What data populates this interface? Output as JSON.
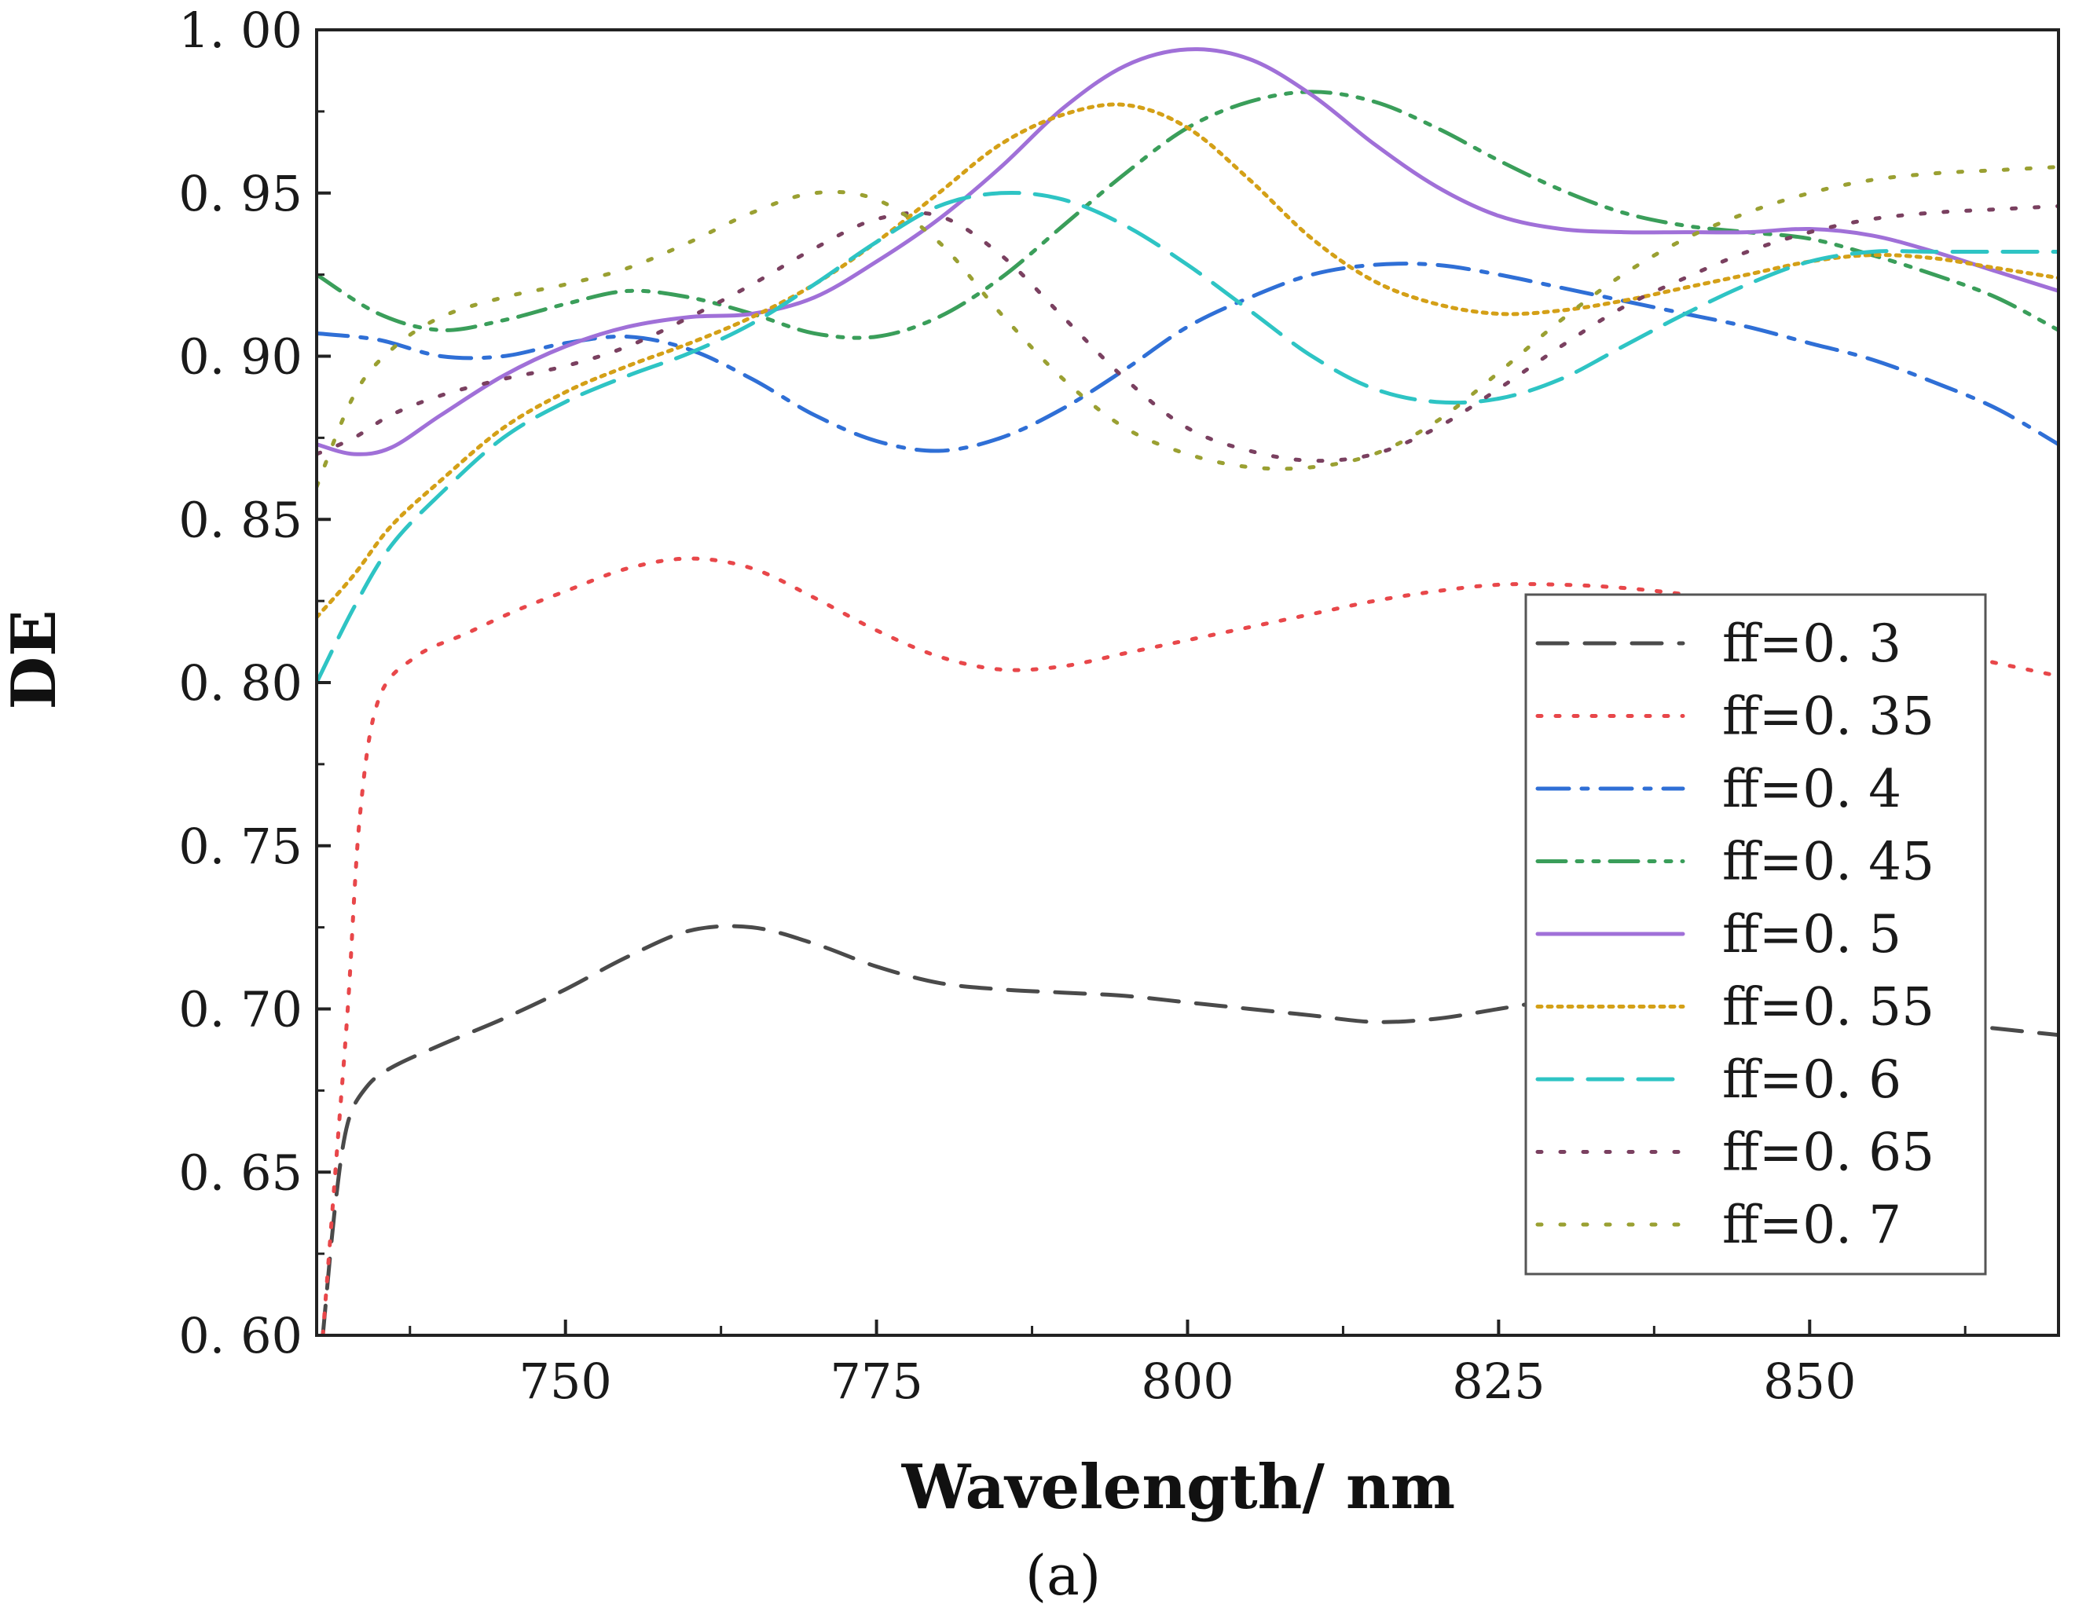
{
  "chart_data": {
    "type": "line",
    "title": "",
    "xlabel": "Wavelength/ nm",
    "ylabel": "DE",
    "caption": "(a)",
    "xlim": [
      730,
      870
    ],
    "ylim": [
      0.6,
      1.0
    ],
    "x_ticks": [
      750,
      775,
      800,
      825,
      850
    ],
    "x_tick_labels": [
      "750",
      "775",
      "800",
      "825",
      "850"
    ],
    "y_ticks": [
      0.6,
      0.65,
      0.7,
      0.75,
      0.8,
      0.85,
      0.9,
      0.95,
      1.0
    ],
    "y_tick_labels": [
      "0. 60",
      "0. 65",
      "0. 70",
      "0. 75",
      "0. 80",
      "0. 85",
      "0. 90",
      "0. 95",
      "1. 00"
    ],
    "legend_position": "right-middle",
    "grid": false,
    "series": [
      {
        "name": "ff=0. 3",
        "color": "#4a4a4a",
        "dash": "dash",
        "x": [
          730.5,
          731.5,
          732.5,
          734,
          736,
          740,
          745,
          750,
          755,
          760,
          765,
          770,
          775,
          780,
          785,
          790,
          795,
          800,
          805,
          810,
          815,
          820,
          825,
          830,
          835,
          840,
          845,
          850,
          855,
          860,
          865,
          870
        ],
        "y": [
          0.6,
          0.64,
          0.665,
          0.676,
          0.682,
          0.689,
          0.697,
          0.706,
          0.716,
          0.724,
          0.725,
          0.72,
          0.713,
          0.708,
          0.706,
          0.705,
          0.704,
          0.702,
          0.7,
          0.698,
          0.696,
          0.697,
          0.7,
          0.703,
          0.705,
          0.705,
          0.703,
          0.7,
          0.698,
          0.696,
          0.694,
          0.692
        ]
      },
      {
        "name": "ff=0. 35",
        "color": "#e8474a",
        "dash": "dot",
        "x": [
          730.5,
          731.5,
          732.5,
          733.5,
          735,
          738,
          742,
          746,
          750,
          755,
          760,
          765,
          770,
          775,
          780,
          785,
          790,
          795,
          800,
          805,
          810,
          815,
          820,
          825,
          830,
          835,
          840,
          845,
          850,
          855,
          860,
          865,
          870
        ],
        "y": [
          0.6,
          0.65,
          0.7,
          0.76,
          0.795,
          0.808,
          0.815,
          0.822,
          0.828,
          0.835,
          0.838,
          0.835,
          0.826,
          0.816,
          0.808,
          0.804,
          0.805,
          0.809,
          0.813,
          0.817,
          0.821,
          0.825,
          0.828,
          0.83,
          0.83,
          0.829,
          0.827,
          0.824,
          0.82,
          0.815,
          0.81,
          0.806,
          0.802
        ]
      },
      {
        "name": "ff=0. 4",
        "color": "#2f6fd6",
        "dash": "dashdot",
        "x": [
          730,
          735,
          740,
          745,
          750,
          755,
          760,
          765,
          770,
          775,
          780,
          785,
          790,
          795,
          800,
          805,
          810,
          815,
          820,
          825,
          830,
          835,
          840,
          845,
          850,
          855,
          860,
          865,
          870
        ],
        "y": [
          0.907,
          0.905,
          0.9,
          0.9,
          0.904,
          0.906,
          0.902,
          0.893,
          0.882,
          0.874,
          0.871,
          0.875,
          0.884,
          0.896,
          0.909,
          0.918,
          0.925,
          0.928,
          0.928,
          0.925,
          0.921,
          0.917,
          0.913,
          0.909,
          0.904,
          0.899,
          0.892,
          0.884,
          0.873
        ]
      },
      {
        "name": "ff=0. 45",
        "color": "#3a9e5a",
        "dash": "dashdotdot",
        "x": [
          730,
          735,
          740,
          745,
          750,
          755,
          760,
          765,
          770,
          775,
          780,
          785,
          790,
          795,
          800,
          805,
          810,
          815,
          820,
          825,
          830,
          835,
          840,
          845,
          850,
          855,
          860,
          865,
          870
        ],
        "y": [
          0.925,
          0.913,
          0.908,
          0.911,
          0.916,
          0.92,
          0.918,
          0.913,
          0.907,
          0.906,
          0.912,
          0.924,
          0.94,
          0.956,
          0.97,
          0.978,
          0.981,
          0.978,
          0.97,
          0.96,
          0.951,
          0.944,
          0.94,
          0.938,
          0.936,
          0.931,
          0.925,
          0.918,
          0.908
        ]
      },
      {
        "name": "ff=0. 5",
        "color": "#a070d8",
        "dash": "solid",
        "x": [
          730,
          733,
          736,
          740,
          745,
          750,
          755,
          760,
          765,
          770,
          775,
          780,
          785,
          790,
          795,
          800,
          805,
          810,
          815,
          820,
          825,
          830,
          835,
          840,
          845,
          850,
          855,
          860,
          865,
          870
        ],
        "y": [
          0.873,
          0.87,
          0.872,
          0.882,
          0.894,
          0.903,
          0.909,
          0.912,
          0.913,
          0.918,
          0.929,
          0.942,
          0.958,
          0.976,
          0.989,
          0.994,
          0.991,
          0.98,
          0.965,
          0.952,
          0.943,
          0.939,
          0.938,
          0.938,
          0.938,
          0.939,
          0.937,
          0.932,
          0.926,
          0.92
        ]
      },
      {
        "name": "ff=0. 55",
        "color": "#d4a017",
        "dash": "densedot",
        "x": [
          730,
          733,
          736,
          740,
          745,
          750,
          755,
          760,
          765,
          770,
          775,
          780,
          785,
          790,
          795,
          800,
          805,
          810,
          815,
          820,
          825,
          830,
          835,
          840,
          845,
          850,
          855,
          860,
          865,
          870
        ],
        "y": [
          0.82,
          0.833,
          0.848,
          0.862,
          0.878,
          0.889,
          0.897,
          0.904,
          0.912,
          0.922,
          0.935,
          0.95,
          0.965,
          0.974,
          0.977,
          0.97,
          0.954,
          0.936,
          0.923,
          0.916,
          0.913,
          0.914,
          0.917,
          0.921,
          0.925,
          0.929,
          0.931,
          0.93,
          0.927,
          0.924
        ]
      },
      {
        "name": "ff=0. 6",
        "color": "#2ec4c4",
        "dash": "longdash",
        "x": [
          730,
          733,
          736,
          740,
          745,
          750,
          755,
          760,
          765,
          770,
          775,
          780,
          785,
          790,
          795,
          800,
          805,
          810,
          815,
          820,
          825,
          830,
          835,
          840,
          845,
          850,
          855,
          860,
          865,
          870
        ],
        "y": [
          0.8,
          0.823,
          0.842,
          0.858,
          0.875,
          0.886,
          0.894,
          0.901,
          0.91,
          0.922,
          0.935,
          0.946,
          0.95,
          0.948,
          0.94,
          0.928,
          0.914,
          0.9,
          0.89,
          0.886,
          0.887,
          0.893,
          0.903,
          0.913,
          0.922,
          0.929,
          0.932,
          0.932,
          0.932,
          0.932
        ]
      },
      {
        "name": "ff=0. 65",
        "color": "#7a4060",
        "dash": "sparsedot",
        "x": [
          730,
          733,
          736,
          740,
          745,
          750,
          755,
          760,
          765,
          770,
          775,
          780,
          785,
          790,
          795,
          800,
          805,
          810,
          815,
          820,
          825,
          830,
          835,
          840,
          845,
          850,
          855,
          860,
          865,
          870
        ],
        "y": [
          0.87,
          0.875,
          0.882,
          0.888,
          0.893,
          0.897,
          0.903,
          0.912,
          0.922,
          0.933,
          0.942,
          0.943,
          0.931,
          0.912,
          0.893,
          0.878,
          0.871,
          0.868,
          0.87,
          0.878,
          0.89,
          0.903,
          0.915,
          0.924,
          0.932,
          0.938,
          0.942,
          0.944,
          0.945,
          0.946
        ]
      },
      {
        "name": "ff=0. 7",
        "color": "#9aa032",
        "dash": "sparsedot",
        "x": [
          730,
          733,
          736,
          740,
          745,
          750,
          755,
          760,
          765,
          770,
          775,
          780,
          785,
          790,
          795,
          800,
          805,
          810,
          815,
          820,
          825,
          830,
          835,
          840,
          845,
          850,
          855,
          860,
          865,
          870
        ],
        "y": [
          0.86,
          0.888,
          0.902,
          0.912,
          0.918,
          0.922,
          0.927,
          0.935,
          0.944,
          0.95,
          0.948,
          0.935,
          0.913,
          0.893,
          0.878,
          0.87,
          0.866,
          0.866,
          0.87,
          0.88,
          0.895,
          0.911,
          0.925,
          0.936,
          0.944,
          0.95,
          0.954,
          0.956,
          0.957,
          0.958
        ]
      }
    ]
  }
}
